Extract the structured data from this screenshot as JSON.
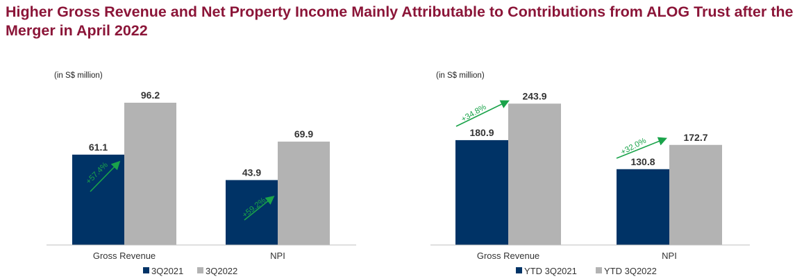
{
  "title": "Higher Gross Revenue and Net Property Income Mainly Attributable to Contributions from ALOG Trust after the Merger in April 2022",
  "colors": {
    "title": "#8b1538",
    "series_prior": "#003366",
    "series_current": "#b3b3b3",
    "growth_arrow": "#1aa34a",
    "axis": "#bfbfbf"
  },
  "chart_data": [
    {
      "type": "bar",
      "unit_label": "(in S$ million)",
      "categories": [
        "Gross Revenue",
        "NPI"
      ],
      "series": [
        {
          "name": "3Q2021",
          "values": [
            61.1,
            43.9
          ]
        },
        {
          "name": "3Q2022",
          "values": [
            96.2,
            69.9
          ]
        }
      ],
      "value_labels": [
        [
          "61.1",
          "43.9"
        ],
        [
          "96.2",
          "69.9"
        ]
      ],
      "growth_labels": [
        "+57.4%",
        "+59.2%"
      ],
      "ylim": [
        0,
        107
      ],
      "legend_position": "bottom"
    },
    {
      "type": "bar",
      "unit_label": "(in S$ million)",
      "categories": [
        "Gross Revenue",
        "NPI"
      ],
      "series": [
        {
          "name": "YTD 3Q2021",
          "values": [
            180.9,
            130.8
          ]
        },
        {
          "name": "YTD 3Q2022",
          "values": [
            243.9,
            172.7
          ]
        }
      ],
      "value_labels": [
        [
          "180.9",
          "130.8"
        ],
        [
          "243.9",
          "172.7"
        ]
      ],
      "growth_labels": [
        "+34.8%",
        "+32.0%"
      ],
      "ylim": [
        0,
        273
      ],
      "legend_position": "bottom"
    }
  ]
}
